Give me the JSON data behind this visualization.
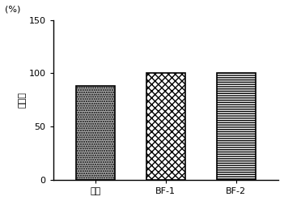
{
  "categories": [
    "阴极",
    "BF-1",
    "BF-2"
  ],
  "values": [
    88,
    100,
    100
  ],
  "ylim": [
    0,
    150
  ],
  "yticks": [
    0,
    50,
    100,
    150
  ],
  "ylabel_top": "(%)",
  "ylabel_rotated": "率制抑",
  "bar_edgecolor": "#000000",
  "background_color": "#ffffff",
  "tick_fontsize": 8,
  "label_fontsize": 8,
  "bar_width": 0.55
}
